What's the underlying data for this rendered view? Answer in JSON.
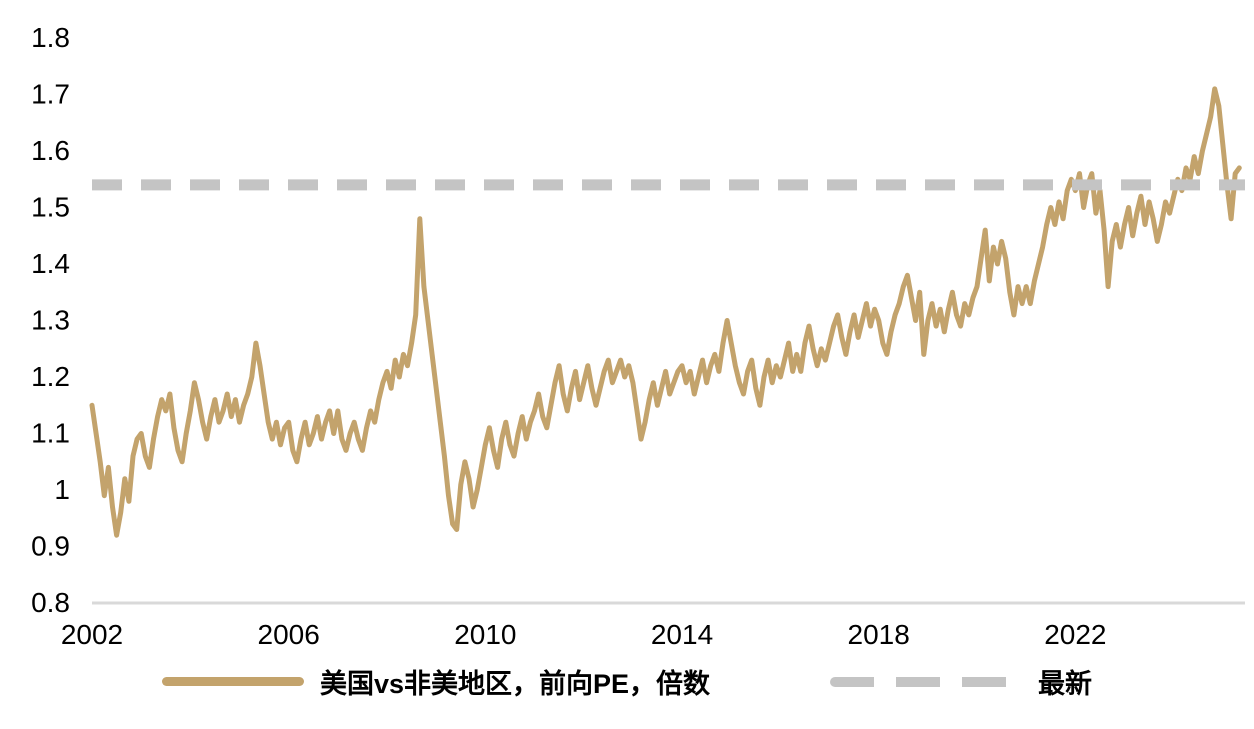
{
  "chart_data": {
    "type": "line",
    "title": "",
    "xlabel": "",
    "ylabel": "",
    "xlim": [
      2002,
      2025.45
    ],
    "ylim": [
      0.8,
      1.8
    ],
    "grid": false,
    "legend_position": "bottom",
    "axis_line_color": "#D9D9D9",
    "x_start": 2002,
    "points_per_year": 12,
    "x_ticks": [
      2002,
      2006,
      2010,
      2014,
      2018,
      2022
    ],
    "y_tick_values": [
      1.8,
      1.7,
      1.6,
      1.5,
      1.4,
      1.3,
      1.2,
      1.1,
      1,
      0.9,
      0.8
    ],
    "y_tick_labels": [
      "1.8",
      "1.7",
      "1.6",
      "1.5",
      "1.4",
      "1.3",
      "1.2",
      "1.1",
      "1",
      "0.9",
      "0.8"
    ],
    "series": [
      {
        "name": "美国vs非美地区，前向PE，倍数",
        "color": "#C3A36C",
        "style": "solid",
        "values": [
          1.15,
          1.1,
          1.05,
          0.99,
          1.04,
          0.97,
          0.92,
          0.96,
          1.02,
          0.98,
          1.06,
          1.09,
          1.1,
          1.06,
          1.04,
          1.09,
          1.13,
          1.16,
          1.14,
          1.17,
          1.11,
          1.07,
          1.05,
          1.1,
          1.14,
          1.19,
          1.16,
          1.12,
          1.09,
          1.13,
          1.16,
          1.12,
          1.14,
          1.17,
          1.13,
          1.16,
          1.12,
          1.15,
          1.17,
          1.2,
          1.26,
          1.22,
          1.17,
          1.12,
          1.09,
          1.12,
          1.08,
          1.11,
          1.12,
          1.07,
          1.05,
          1.09,
          1.12,
          1.08,
          1.1,
          1.13,
          1.09,
          1.12,
          1.14,
          1.1,
          1.14,
          1.09,
          1.07,
          1.1,
          1.12,
          1.09,
          1.07,
          1.11,
          1.14,
          1.12,
          1.16,
          1.19,
          1.21,
          1.18,
          1.23,
          1.2,
          1.24,
          1.22,
          1.26,
          1.31,
          1.48,
          1.36,
          1.3,
          1.24,
          1.18,
          1.12,
          1.06,
          0.99,
          0.94,
          0.93,
          1.01,
          1.05,
          1.02,
          0.97,
          1.0,
          1.04,
          1.08,
          1.11,
          1.07,
          1.04,
          1.09,
          1.12,
          1.08,
          1.06,
          1.1,
          1.13,
          1.09,
          1.12,
          1.14,
          1.17,
          1.13,
          1.11,
          1.15,
          1.19,
          1.22,
          1.17,
          1.14,
          1.18,
          1.21,
          1.16,
          1.19,
          1.22,
          1.18,
          1.15,
          1.18,
          1.21,
          1.23,
          1.19,
          1.21,
          1.23,
          1.2,
          1.22,
          1.19,
          1.14,
          1.09,
          1.12,
          1.16,
          1.19,
          1.15,
          1.18,
          1.21,
          1.17,
          1.19,
          1.21,
          1.22,
          1.19,
          1.21,
          1.17,
          1.2,
          1.23,
          1.19,
          1.22,
          1.24,
          1.21,
          1.26,
          1.3,
          1.26,
          1.22,
          1.19,
          1.17,
          1.21,
          1.23,
          1.18,
          1.15,
          1.2,
          1.23,
          1.19,
          1.22,
          1.2,
          1.23,
          1.26,
          1.21,
          1.24,
          1.21,
          1.26,
          1.29,
          1.25,
          1.22,
          1.25,
          1.23,
          1.26,
          1.29,
          1.31,
          1.27,
          1.24,
          1.28,
          1.31,
          1.27,
          1.3,
          1.33,
          1.29,
          1.32,
          1.3,
          1.26,
          1.24,
          1.28,
          1.31,
          1.33,
          1.36,
          1.38,
          1.34,
          1.3,
          1.35,
          1.24,
          1.3,
          1.33,
          1.29,
          1.32,
          1.28,
          1.32,
          1.35,
          1.31,
          1.29,
          1.33,
          1.31,
          1.34,
          1.36,
          1.41,
          1.46,
          1.37,
          1.43,
          1.4,
          1.44,
          1.41,
          1.35,
          1.31,
          1.36,
          1.33,
          1.36,
          1.33,
          1.37,
          1.4,
          1.43,
          1.47,
          1.5,
          1.47,
          1.51,
          1.48,
          1.53,
          1.55,
          1.53,
          1.56,
          1.5,
          1.54,
          1.56,
          1.49,
          1.53,
          1.46,
          1.36,
          1.44,
          1.47,
          1.43,
          1.47,
          1.5,
          1.45,
          1.49,
          1.52,
          1.47,
          1.51,
          1.48,
          1.44,
          1.47,
          1.51,
          1.49,
          1.52,
          1.55,
          1.53,
          1.57,
          1.55,
          1.59,
          1.56,
          1.6,
          1.63,
          1.66,
          1.71,
          1.68,
          1.61,
          1.54,
          1.48,
          1.56,
          1.57
        ]
      }
    ],
    "reference_line": {
      "name": "最新",
      "value": 1.54,
      "color": "#C4C4C4",
      "style": "dashed"
    }
  }
}
